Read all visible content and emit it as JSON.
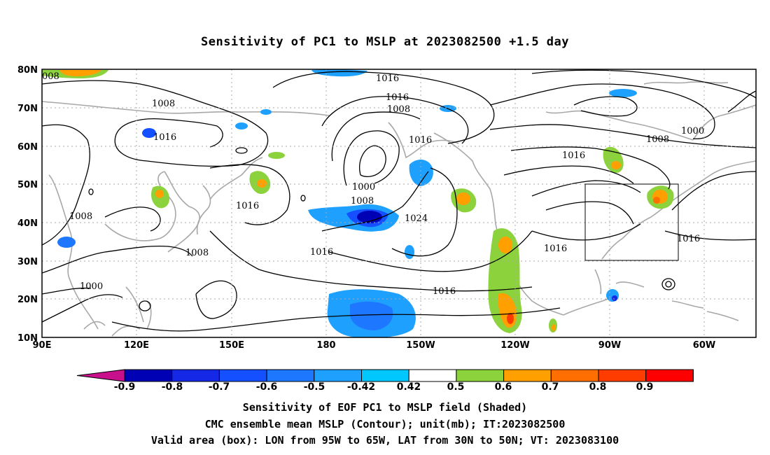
{
  "title": "Sensitivity of PC1 to MSLP at 2023082500 +1.5 day",
  "map": {
    "lat_ticks": [
      "80N",
      "70N",
      "60N",
      "50N",
      "40N",
      "30N",
      "20N",
      "10N"
    ],
    "lon_ticks": [
      "90E",
      "120E",
      "150E",
      "180",
      "150W",
      "120W",
      "90W",
      "60W"
    ],
    "contour_labels": [
      "008",
      "1008",
      "1016",
      "1016",
      "1008",
      "1016",
      "1016",
      "1000",
      "1008",
      "1016",
      "1008",
      "1024",
      "1016",
      "1008",
      "1016",
      "1000",
      "1016",
      "1000",
      "1008",
      "1016",
      "1016"
    ],
    "valid_box": {
      "lon_from": "95W",
      "lon_to": "65W",
      "lat_from": "30N",
      "lat_to": "50N"
    },
    "colors": {
      "coast": "#a8a8a8",
      "contour": "#000000",
      "box": "#000000"
    }
  },
  "colorbar": {
    "labels": [
      "-0.9",
      "-0.8",
      "-0.7",
      "-0.6",
      "-0.5",
      "-0.42",
      "0.42",
      "0.5",
      "0.6",
      "0.7",
      "0.8",
      "0.9"
    ],
    "colors": [
      "#c8108c",
      "#0000b4",
      "#1428e6",
      "#1450ff",
      "#1e78ff",
      "#1ea0ff",
      "#00c8ff",
      "#ffffff",
      "#8cd23c",
      "#ffa000",
      "#ff6e00",
      "#ff3c00",
      "#ff0000",
      "#f0a0c8"
    ]
  },
  "captions": {
    "line1": "Sensitivity of EOF PC1 to MSLP field (Shaded)",
    "line2": "CMC ensemble mean MSLP (Contour); unit(mb); IT:2023082500",
    "line3": "Valid area (box): LON from 95W to 65W, LAT from 30N to 50N; VT: 2023083100"
  }
}
